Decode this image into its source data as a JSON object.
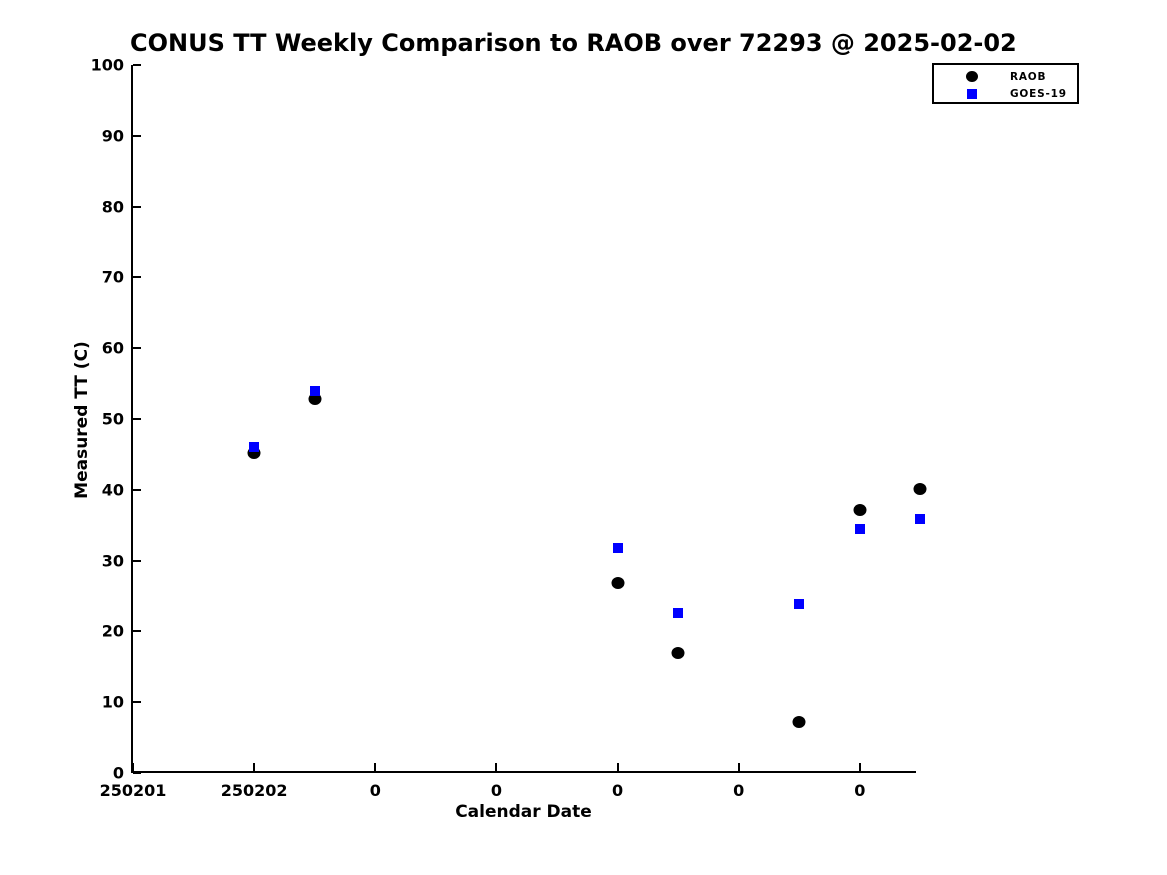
{
  "title": "CONUS TT Weekly Comparison to RAOB over 72293 @ 2025-02-02",
  "colors": {
    "raob": "#000000",
    "goes19": "#0000ff",
    "axis": "#000000",
    "background": "#ffffff"
  },
  "chart_data": {
    "type": "scatter",
    "title": "CONUS TT Weekly Comparison to RAOB over 72293 @ 2025-02-02",
    "xlabel": "Calendar Date",
    "ylabel": "Measured TT (C)",
    "xlim": [
      0,
      6.48
    ],
    "ylim": [
      0,
      100
    ],
    "grid": false,
    "x_ticks": [
      {
        "pos": 0,
        "label": "250201"
      },
      {
        "pos": 1,
        "label": "250202"
      },
      {
        "pos": 2,
        "label": "0"
      },
      {
        "pos": 3,
        "label": "0"
      },
      {
        "pos": 4,
        "label": "0"
      },
      {
        "pos": 5,
        "label": "0"
      },
      {
        "pos": 6,
        "label": "0"
      }
    ],
    "y_ticks": [
      0,
      10,
      20,
      30,
      40,
      50,
      60,
      70,
      80,
      90,
      100
    ],
    "series": [
      {
        "name": "RAOB",
        "marker": "circle",
        "color": "#000000",
        "x": [
          1.0,
          1.5,
          4.0,
          4.5,
          5.5,
          6.0,
          6.5
        ],
        "y": [
          45.2,
          52.8,
          26.8,
          17.0,
          7.2,
          37.2,
          40.1
        ]
      },
      {
        "name": "GOES-19",
        "marker": "square",
        "color": "#0000ff",
        "x": [
          1.0,
          1.5,
          4.0,
          4.5,
          5.5,
          6.0,
          6.5
        ],
        "y": [
          46.0,
          54.0,
          31.8,
          22.6,
          23.9,
          34.5,
          35.9
        ]
      }
    ],
    "legend": {
      "position": "top-right",
      "entries": [
        "RAOB",
        "GOES-19"
      ]
    }
  }
}
